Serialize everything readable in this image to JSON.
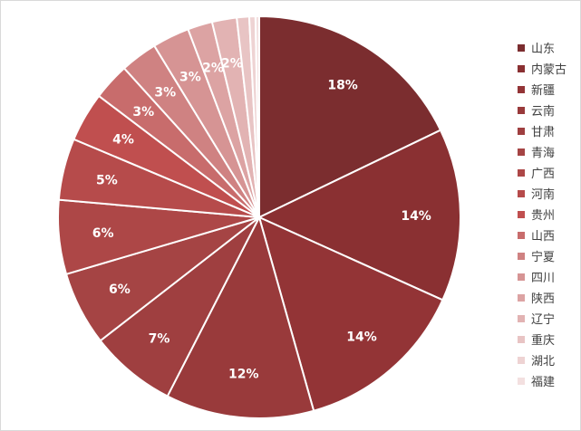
{
  "chart_data": {
    "type": "pie",
    "title": "",
    "legend_position": "right",
    "slices": [
      {
        "name": "山东",
        "value": 18,
        "label": "18%",
        "color": "#7b2d2f"
      },
      {
        "name": "内蒙古",
        "value": 14,
        "label": "14%",
        "color": "#8a3032"
      },
      {
        "name": "新疆",
        "value": 14,
        "label": "14%",
        "color": "#933436"
      },
      {
        "name": "云南",
        "value": 12,
        "label": "12%",
        "color": "#993a3b"
      },
      {
        "name": "甘肃",
        "value": 7,
        "label": "7%",
        "color": "#9f3f40"
      },
      {
        "name": "青海",
        "value": 6,
        "label": "6%",
        "color": "#a54444"
      },
      {
        "name": "广西",
        "value": 6,
        "label": "6%",
        "color": "#ad4747"
      },
      {
        "name": "河南",
        "value": 5,
        "label": "5%",
        "color": "#b64b4b"
      },
      {
        "name": "贵州",
        "value": 4,
        "label": "4%",
        "color": "#c04f4f"
      },
      {
        "name": "山西",
        "value": 3,
        "label": "3%",
        "color": "#c86c6c"
      },
      {
        "name": "宁夏",
        "value": 3,
        "label": "3%",
        "color": "#cf8282"
      },
      {
        "name": "四川",
        "value": 3,
        "label": "3%",
        "color": "#d69494"
      },
      {
        "name": "陕西",
        "value": 2,
        "label": "2%",
        "color": "#dca3a3"
      },
      {
        "name": "辽宁",
        "value": 2,
        "label": "2%",
        "color": "#e2b3b3"
      },
      {
        "name": "重庆",
        "value": 1,
        "label": "",
        "color": "#e8c4c4"
      },
      {
        "name": "湖北",
        "value": 0.5,
        "label": "",
        "color": "#eed3d3"
      },
      {
        "name": "福建",
        "value": 0.3,
        "label": "",
        "color": "#f3e0e0"
      }
    ]
  }
}
